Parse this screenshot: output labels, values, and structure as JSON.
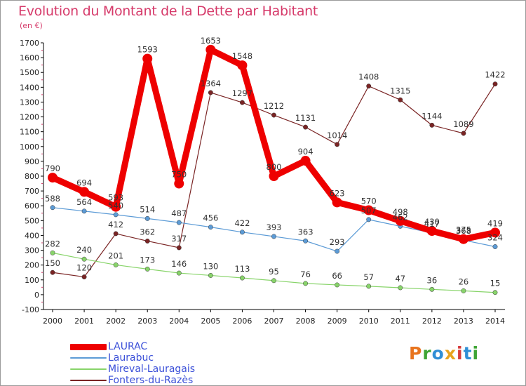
{
  "title": "Evolution du Montant de la Dette par Habitant",
  "subtitle": "(en €)",
  "logo": "Proxiti",
  "chart_data": {
    "type": "line",
    "title": "Evolution du Montant de la Dette par Habitant",
    "subtitle": "(en €)",
    "xlabel": "",
    "ylabel": "",
    "x": [
      2000,
      2001,
      2002,
      2003,
      2004,
      2005,
      2006,
      2007,
      2008,
      2009,
      2010,
      2011,
      2012,
      2013,
      2014
    ],
    "ylim": [
      -100,
      1700
    ],
    "yticks": [
      -100,
      0,
      100,
      200,
      300,
      400,
      500,
      600,
      700,
      800,
      900,
      1000,
      1100,
      1200,
      1300,
      1400,
      1500,
      1600,
      1700
    ],
    "grid": false,
    "legend": "bottom-left",
    "series": [
      {
        "name": "LAURAC",
        "color": "#ee0000",
        "values": [
          790,
          694,
          593,
          1593,
          750,
          1653,
          1548,
          800,
          904,
          623,
          570,
          498,
          430,
          375,
          419
        ],
        "labels": [
          "790",
          "694",
          "593",
          "1593",
          "750",
          "1653",
          "1548",
          "800",
          "904",
          "623",
          "570",
          "498",
          "430",
          "375",
          "419"
        ]
      },
      {
        "name": "Laurabuc",
        "color": "#5c9bd6",
        "values": [
          588,
          564,
          540,
          514,
          487,
          456,
          422,
          393,
          363,
          293,
          507,
          462,
          417,
          368,
          324
        ],
        "labels": [
          "588",
          "564",
          "540",
          "514",
          "487",
          "456",
          "422",
          "393",
          "363",
          "293",
          "507",
          "462",
          "417",
          "368",
          "324"
        ]
      },
      {
        "name": "Mireval-Lauragais",
        "color": "#88d46a",
        "values": [
          282,
          240,
          201,
          173,
          146,
          130,
          113,
          95,
          76,
          66,
          57,
          47,
          36,
          26,
          15
        ],
        "labels": [
          "282",
          "240",
          "201",
          "173",
          "146",
          "130",
          "113",
          "95",
          "76",
          "66",
          "57",
          "47",
          "36",
          "26",
          "15"
        ]
      },
      {
        "name": "Fonters-du-Razès",
        "color": "#7a2424",
        "values": [
          150,
          120,
          412,
          362,
          317,
          1364,
          1297,
          1212,
          1131,
          1014,
          1408,
          1315,
          1144,
          1089,
          1422
        ],
        "labels": [
          "150",
          "120",
          "412",
          "362",
          "317",
          "1364",
          "1297",
          "1212",
          "1131",
          "1014",
          "1408",
          "1315",
          "1144",
          "1089",
          "1422"
        ]
      }
    ]
  }
}
